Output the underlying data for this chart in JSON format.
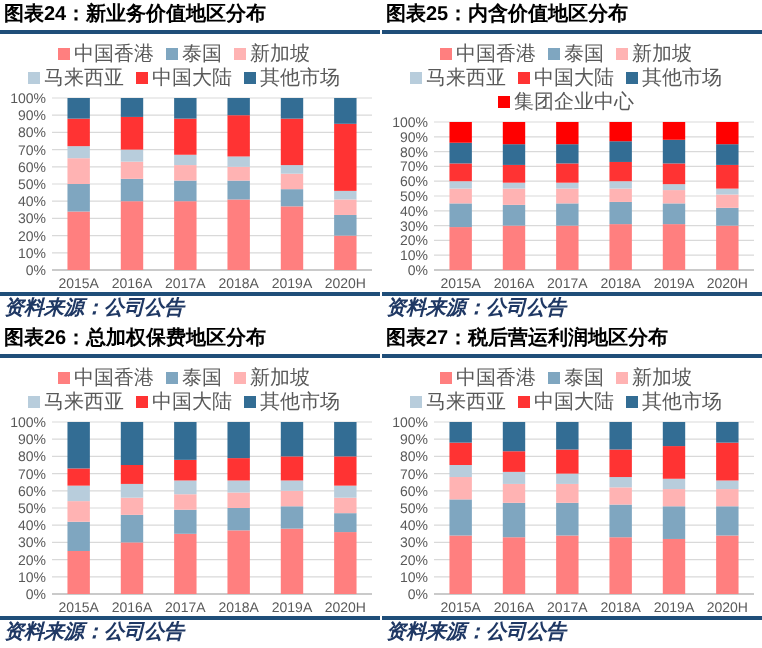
{
  "chart_data": [
    {
      "type": "bar",
      "stacked": true,
      "title": "图表24：新业务价值地区分布",
      "categories": [
        "2015A",
        "2016A",
        "2017A",
        "2018A",
        "2019A",
        "2020H"
      ],
      "ylim": [
        0,
        100
      ],
      "yticks": [
        {
          "value": 0,
          "label": "0%"
        },
        {
          "value": 10,
          "label": "10%"
        },
        {
          "value": 20,
          "label": "20%"
        },
        {
          "value": 30,
          "label": "30%"
        },
        {
          "value": 40,
          "label": "40%"
        },
        {
          "value": 50,
          "label": "50%"
        },
        {
          "value": 60,
          "label": "60%"
        },
        {
          "value": 70,
          "label": "70%"
        },
        {
          "value": 80,
          "label": "80%"
        },
        {
          "value": 90,
          "label": "90%"
        },
        {
          "value": 100,
          "label": "100%"
        }
      ],
      "grid": "y",
      "legend": "top",
      "annotations": [
        "资料来源：公司公告"
      ],
      "series": [
        {
          "name": "中国香港",
          "color": "#ff7f7f",
          "values": [
            34,
            40,
            40,
            41,
            37,
            20
          ]
        },
        {
          "name": "泰国",
          "color": "#7fa6c0",
          "values": [
            16,
            13,
            12,
            11,
            10,
            12
          ]
        },
        {
          "name": "新加坡",
          "color": "#ffb3b3",
          "values": [
            15,
            10,
            9,
            8,
            9,
            9
          ]
        },
        {
          "name": "马来西亚",
          "color": "#b8cddc",
          "values": [
            7,
            7,
            6,
            6,
            5,
            5
          ]
        },
        {
          "name": "中国大陆",
          "color": "#ff3333",
          "values": [
            16,
            19,
            21,
            24,
            27,
            39
          ]
        },
        {
          "name": "其他市场",
          "color": "#336d94",
          "values": [
            12,
            11,
            12,
            10,
            12,
            15
          ]
        }
      ]
    },
    {
      "type": "bar",
      "stacked": true,
      "title": "图表25：内含价值地区分布",
      "categories": [
        "2015A",
        "2016A",
        "2017A",
        "2018A",
        "2019A",
        "2020H"
      ],
      "ylim": [
        0,
        100
      ],
      "yticks": [
        {
          "value": 0,
          "label": "0%"
        },
        {
          "value": 10,
          "label": "10%"
        },
        {
          "value": 20,
          "label": "20%"
        },
        {
          "value": 30,
          "label": "30%"
        },
        {
          "value": 40,
          "label": "40%"
        },
        {
          "value": 50,
          "label": "50%"
        },
        {
          "value": 60,
          "label": "60%"
        },
        {
          "value": 70,
          "label": "70%"
        },
        {
          "value": 80,
          "label": "80%"
        },
        {
          "value": 90,
          "label": "90%"
        },
        {
          "value": 100,
          "label": "100%"
        }
      ],
      "grid": "y",
      "legend": "top",
      "annotations": [
        "资料来源：公司公告"
      ],
      "series": [
        {
          "name": "中国香港",
          "color": "#ff7f7f",
          "values": [
            29,
            30,
            30,
            31,
            31,
            30
          ]
        },
        {
          "name": "泰国",
          "color": "#7fa6c0",
          "values": [
            16,
            14,
            15,
            15,
            14,
            12
          ]
        },
        {
          "name": "新加坡",
          "color": "#ffb3b3",
          "values": [
            10,
            11,
            10,
            9,
            9,
            9
          ]
        },
        {
          "name": "马来西亚",
          "color": "#b8cddc",
          "values": [
            5,
            4,
            4,
            5,
            4,
            4
          ]
        },
        {
          "name": "中国大陆",
          "color": "#ff3333",
          "values": [
            12,
            12,
            13,
            13,
            14,
            16
          ]
        },
        {
          "name": "其他市场",
          "color": "#336d94",
          "values": [
            14,
            14,
            13,
            14,
            16,
            14
          ]
        },
        {
          "name": "集团企业中心",
          "color": "#ff0000",
          "values": [
            14,
            15,
            15,
            13,
            12,
            15
          ]
        }
      ]
    },
    {
      "type": "bar",
      "stacked": true,
      "title": "图表26：总加权保费地区分布",
      "categories": [
        "2015A",
        "2016A",
        "2017A",
        "2018A",
        "2019A",
        "2020H"
      ],
      "ylim": [
        0,
        100
      ],
      "yticks": [
        {
          "value": 0,
          "label": "0%"
        },
        {
          "value": 10,
          "label": "10%"
        },
        {
          "value": 20,
          "label": "20%"
        },
        {
          "value": 30,
          "label": "30%"
        },
        {
          "value": 40,
          "label": "40%"
        },
        {
          "value": 50,
          "label": "50%"
        },
        {
          "value": 60,
          "label": "60%"
        },
        {
          "value": 70,
          "label": "70%"
        },
        {
          "value": 80,
          "label": "80%"
        },
        {
          "value": 90,
          "label": "90%"
        },
        {
          "value": 100,
          "label": "100%"
        }
      ],
      "grid": "y",
      "legend": "top",
      "annotations": [
        "资料来源：公司公告"
      ],
      "series": [
        {
          "name": "中国香港",
          "color": "#ff7f7f",
          "values": [
            25,
            30,
            35,
            37,
            38,
            36
          ]
        },
        {
          "name": "泰国",
          "color": "#7fa6c0",
          "values": [
            17,
            16,
            14,
            13,
            13,
            11
          ]
        },
        {
          "name": "新加坡",
          "color": "#ffb3b3",
          "values": [
            12,
            10,
            9,
            9,
            9,
            9
          ]
        },
        {
          "name": "马来西亚",
          "color": "#b8cddc",
          "values": [
            9,
            8,
            8,
            7,
            6,
            7
          ]
        },
        {
          "name": "中国大陆",
          "color": "#ff3333",
          "values": [
            10,
            11,
            12,
            13,
            14,
            17
          ]
        },
        {
          "name": "其他市场",
          "color": "#336d94",
          "values": [
            27,
            25,
            22,
            21,
            20,
            20
          ]
        }
      ]
    },
    {
      "type": "bar",
      "stacked": true,
      "title": "图表27：税后营运利润地区分布",
      "categories": [
        "2015A",
        "2016A",
        "2017A",
        "2018A",
        "2019A",
        "2020H"
      ],
      "ylim": [
        0,
        100
      ],
      "yticks": [
        {
          "value": 0,
          "label": "0%"
        },
        {
          "value": 10,
          "label": "10%"
        },
        {
          "value": 20,
          "label": "20%"
        },
        {
          "value": 30,
          "label": "30%"
        },
        {
          "value": 40,
          "label": "40%"
        },
        {
          "value": 50,
          "label": "50%"
        },
        {
          "value": 60,
          "label": "60%"
        },
        {
          "value": 70,
          "label": "70%"
        },
        {
          "value": 80,
          "label": "80%"
        },
        {
          "value": 90,
          "label": "90%"
        },
        {
          "value": 100,
          "label": "100%"
        }
      ],
      "grid": "y",
      "legend": "top",
      "annotations": [
        "资料来源：公司公告"
      ],
      "series": [
        {
          "name": "中国香港",
          "color": "#ff7f7f",
          "values": [
            34,
            33,
            34,
            33,
            32,
            34
          ]
        },
        {
          "name": "泰国",
          "color": "#7fa6c0",
          "values": [
            21,
            20,
            19,
            19,
            19,
            17
          ]
        },
        {
          "name": "新加坡",
          "color": "#ffb3b3",
          "values": [
            13,
            11,
            11,
            10,
            10,
            10
          ]
        },
        {
          "name": "马来西亚",
          "color": "#b8cddc",
          "values": [
            7,
            7,
            6,
            6,
            6,
            5
          ]
        },
        {
          "name": "中国大陆",
          "color": "#ff3333",
          "values": [
            13,
            12,
            14,
            16,
            19,
            22
          ]
        },
        {
          "name": "其他市场",
          "color": "#336d94",
          "values": [
            12,
            17,
            16,
            16,
            14,
            12
          ]
        }
      ]
    }
  ]
}
